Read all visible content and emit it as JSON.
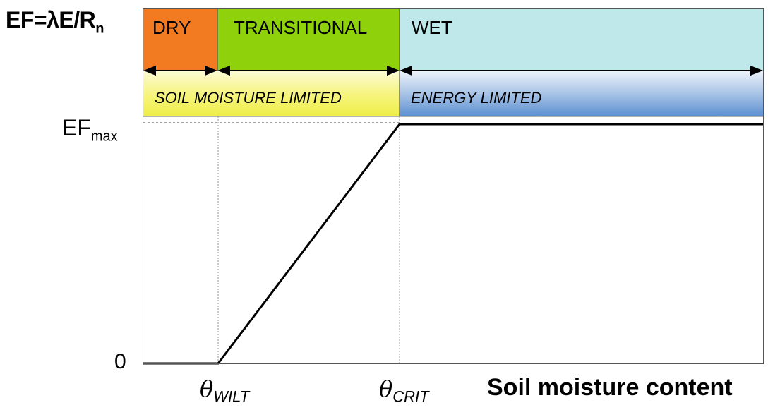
{
  "equation": {
    "main": "EF=λE/R",
    "sub": "n"
  },
  "zones": {
    "dry": "DRY",
    "transitional": "TRANSITIONAL",
    "wet": "WET"
  },
  "limits": {
    "soil": "SOIL MOISTURE LIMITED",
    "energy": "ENERGY LIMITED"
  },
  "y_axis": {
    "max_main": "EF",
    "max_sub": "max",
    "zero": "0"
  },
  "x_axis": {
    "wilt_symbol": "θ",
    "wilt_sub": "WILT",
    "crit_symbol": "θ",
    "crit_sub": "CRIT",
    "label": "Soil moisture content"
  },
  "colors": {
    "dry": "#f27a21",
    "transitional": "#8fd10a",
    "wet": "#bfe8ea",
    "soil_limited": "#eeee48",
    "energy_limited": "#5b8fd1"
  }
}
